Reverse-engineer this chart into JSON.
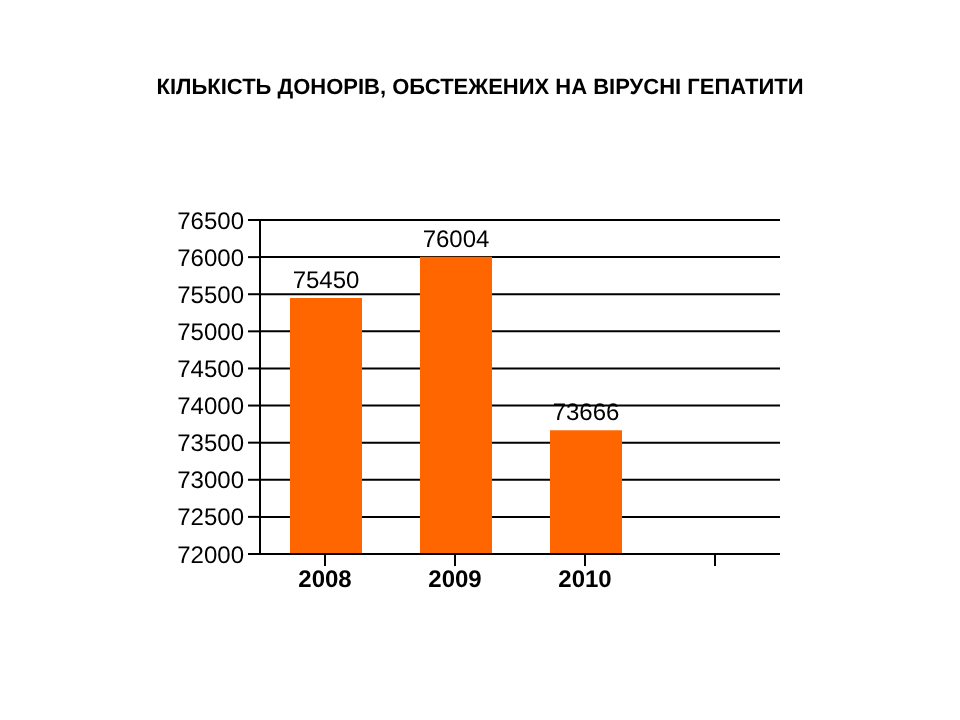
{
  "chart_data": {
    "type": "bar",
    "title": "КІЛЬКІСТЬ ДОНОРІВ, ОБСТЕЖЕНИХ НА ВІРУСНІ ГЕПАТИТИ",
    "categories": [
      "2008",
      "2009",
      "2010",
      null
    ],
    "values": [
      75450,
      76004,
      73666,
      null
    ],
    "color": "#ff6600",
    "ylim": [
      72000,
      76500
    ],
    "yticks": [
      72000,
      72500,
      73000,
      73500,
      74000,
      74500,
      75000,
      75500,
      76000,
      76500
    ],
    "grid": "y",
    "data_labels": true
  }
}
